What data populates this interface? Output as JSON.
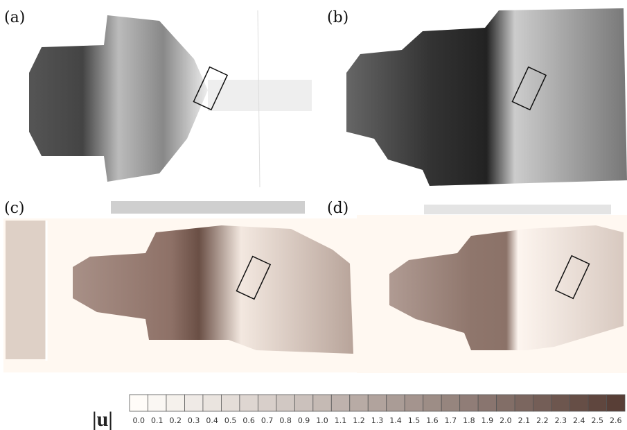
{
  "panels": [
    {
      "label": "(a)"
    },
    {
      "label": "(b)"
    },
    {
      "label": "(c)"
    },
    {
      "label": "(d)"
    }
  ],
  "colorbar": {
    "label": "|u|",
    "ticks": [
      "0.0",
      "0.1",
      "0.2",
      "0.3",
      "0.4",
      "0.5",
      "0.6",
      "0.7",
      "0.8",
      "0.9",
      "1.0",
      "1.1",
      "1.2",
      "1.3",
      "1.4",
      "1.5",
      "1.6",
      "1.7",
      "1.8",
      "1.9",
      "2.0",
      "2.1",
      "2.2",
      "2.3",
      "2.4",
      "2.5",
      "2.6"
    ]
  }
}
